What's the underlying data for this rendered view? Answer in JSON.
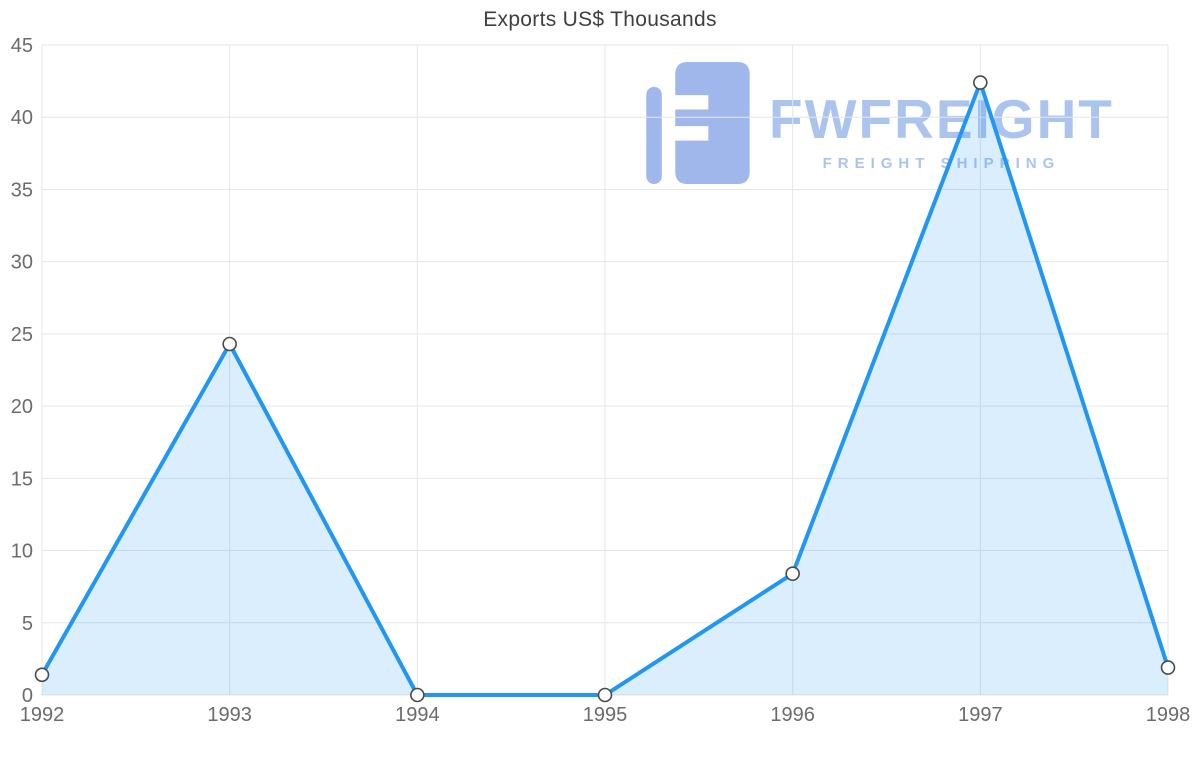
{
  "chart_data": {
    "type": "area",
    "title": "Exports US$ Thousands",
    "categories": [
      "1992",
      "1993",
      "1994",
      "1995",
      "1996",
      "1997",
      "1998"
    ],
    "values": [
      1.4,
      24.3,
      0,
      0,
      8.4,
      42.4,
      1.9
    ],
    "xlabel": "",
    "ylabel": "",
    "ylim": [
      0,
      45
    ],
    "ytick_step": 5,
    "grid": true,
    "legend": "none",
    "line_color": "#2196f3",
    "area_color": "rgba(33,150,243,0.16)",
    "marker_fill": "#ffffff",
    "marker_stroke": "#4a4a4a",
    "gridline_color": "#e6e6e6",
    "tick_label_color": "#6b6b6b"
  },
  "watermark": {
    "brand": "FWFREIGHT",
    "tagline": "FREIGHT SHIPPING",
    "color": "#a7c1ee",
    "icon_color": "#8aa6e6"
  }
}
